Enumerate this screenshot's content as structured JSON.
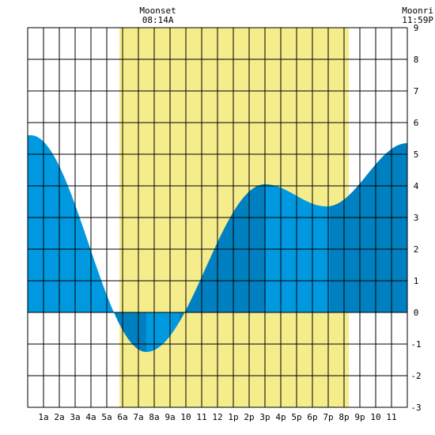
{
  "chart_data": {
    "type": "area",
    "title": "",
    "xlabel": "",
    "ylabel": "",
    "xlim": [
      0,
      24
    ],
    "ylim": [
      -3,
      9
    ],
    "y_ticks": [
      "-3",
      "-2",
      "-1",
      "0",
      "1",
      "2",
      "3",
      "4",
      "5",
      "6",
      "7",
      "8",
      "9"
    ],
    "x_ticks": [
      "1a",
      "2a",
      "3a",
      "4a",
      "5a",
      "6a",
      "7a",
      "8a",
      "9a",
      "10",
      "11",
      "12",
      "1p",
      "2p",
      "3p",
      "4p",
      "5p",
      "6p",
      "7p",
      "8p",
      "9p",
      "10",
      "11"
    ],
    "grid": true,
    "daylight_band": {
      "start_hour": 5.8,
      "end_hour": 20.3
    },
    "annotations": [
      {
        "label": "Moonset",
        "time": "08:14A",
        "hour": 8.23
      },
      {
        "label": "Moonri",
        "time": "11:59P",
        "hour": 24
      }
    ],
    "tide_extremes": [
      {
        "hour": 0.2,
        "value": 5.6
      },
      {
        "hour": 7.5,
        "value": -1.25
      },
      {
        "hour": 15.0,
        "value": 4.05
      },
      {
        "hour": 18.9,
        "value": 3.35
      },
      {
        "hour": 24.0,
        "value": 5.35
      }
    ],
    "tide_shade_breaks": [
      5.5,
      7.5,
      9.6,
      15.0,
      19.1
    ],
    "colors": {
      "daylight": "#F5EC8C",
      "tide_light": "#0099E0",
      "tide_dark": "#0080C0",
      "grid": "#000000",
      "background": "#FFFFFF"
    }
  }
}
